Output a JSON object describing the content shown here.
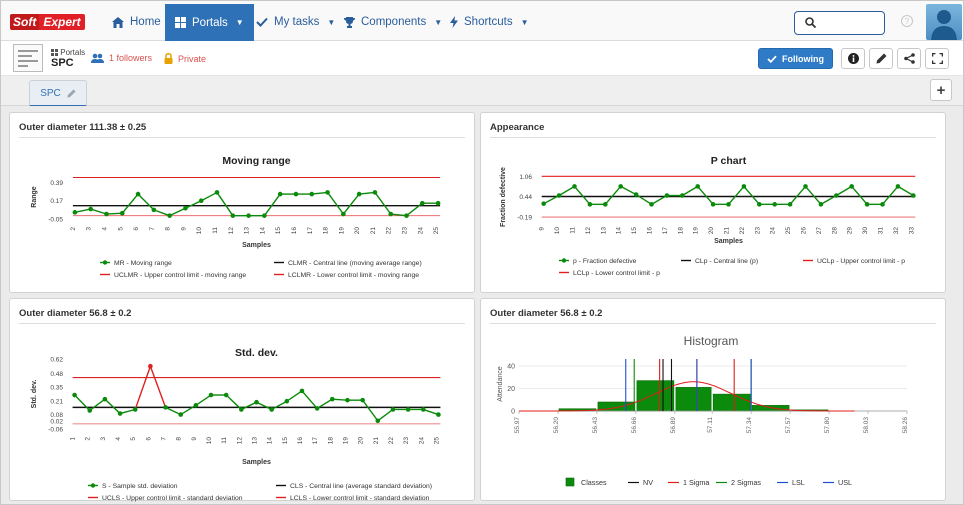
{
  "brand": {
    "part1": "Soft",
    "part2": "Expert"
  },
  "nav": {
    "home": "Home",
    "portals": "Portals",
    "my_tasks": "My tasks",
    "components": "Components",
    "shortcuts": "Shortcuts"
  },
  "colors": {
    "primary": "#2f71b6",
    "series": "#0a8a0a",
    "control_limit": "#e02020",
    "center_line": "#111111"
  },
  "portal": {
    "type": "Portals",
    "name": "SPC",
    "followers": "1 followers",
    "privacy": "Private",
    "follow_button": "Following"
  },
  "tabs": [
    {
      "label": "SPC"
    }
  ],
  "panels": {
    "p1": {
      "title": "Outer diameter 111.38 ± 0.25"
    },
    "p2": {
      "title": "Appearance"
    },
    "p3": {
      "title": "Outer diameter 56.8 ± 0.2"
    },
    "p4": {
      "title": "Outer diameter 56.8 ± 0.2"
    }
  },
  "chart_data": [
    {
      "type": "line",
      "title": "Moving range",
      "xlabel": "Samples",
      "ylabel": "Range",
      "ylim": [
        -0.05,
        0.48
      ],
      "yticks": [
        0.39,
        0.17,
        -0.05
      ],
      "x": [
        "2",
        "3",
        "4",
        "5",
        "6",
        "7",
        "8",
        "9",
        "10",
        "11",
        "12",
        "13",
        "14",
        "15",
        "16",
        "17",
        "18",
        "19",
        "20",
        "21",
        "22",
        "23",
        "24",
        "25"
      ],
      "series": [
        {
          "name": "MR - Moving range",
          "kind": "data",
          "values": [
            0.03,
            0.07,
            0.01,
            0.02,
            0.25,
            0.06,
            -0.01,
            0.08,
            0.17,
            0.27,
            -0.01,
            -0.01,
            -0.01,
            0.25,
            0.25,
            0.25,
            0.27,
            0.01,
            0.25,
            0.27,
            0.01,
            -0.01,
            0.14,
            0.14
          ]
        },
        {
          "name": "CLMR - Central line (moving average range)",
          "kind": "cl",
          "value": 0.11
        },
        {
          "name": "UCLMR - Upper control limit - moving range",
          "kind": "ucl",
          "value": 0.45
        },
        {
          "name": "LCLMR - Lower control limit - moving range",
          "kind": "lcl",
          "value": -0.01
        }
      ],
      "legend": "bottom"
    },
    {
      "type": "line",
      "title": "P chart",
      "xlabel": "Samples",
      "ylabel": "Fraction defective",
      "ylim": [
        -0.25,
        1.1
      ],
      "yticks": [
        1.06,
        0.44,
        -0.19
      ],
      "x": [
        "9",
        "10",
        "11",
        "12",
        "13",
        "14",
        "15",
        "16",
        "17",
        "18",
        "19",
        "20",
        "21",
        "22",
        "23",
        "24",
        "25",
        "26",
        "27",
        "28",
        "29",
        "30",
        "31",
        "32",
        "33"
      ],
      "series": [
        {
          "name": "p - Fraction defective",
          "kind": "data",
          "values": [
            0.22,
            0.47,
            0.75,
            0.2,
            0.2,
            0.75,
            0.5,
            0.2,
            0.47,
            0.47,
            0.75,
            0.2,
            0.2,
            0.75,
            0.2,
            0.2,
            0.2,
            0.75,
            0.2,
            0.47,
            0.75,
            0.2,
            0.2,
            0.75,
            0.47
          ]
        },
        {
          "name": "CLp - Central line (p)",
          "kind": "cl",
          "value": 0.44
        },
        {
          "name": "UCLp - Upper control limit - p",
          "kind": "ucl",
          "value": 1.06
        },
        {
          "name": "LCLp - Lower control limit - p",
          "kind": "lcl",
          "value": -0.19
        }
      ],
      "legend": "bottom"
    },
    {
      "type": "line",
      "title": "Std. dev.",
      "xlabel": "Samples",
      "ylabel": "Std. dev.",
      "ylim": [
        -0.06,
        0.62
      ],
      "yticks": [
        0.62,
        0.48,
        0.35,
        0.21,
        0.08,
        0.02,
        -0.06
      ],
      "x": [
        "1",
        "2",
        "3",
        "4",
        "5",
        "6",
        "7",
        "8",
        "9",
        "10",
        "11",
        "12",
        "13",
        "14",
        "15",
        "16",
        "17",
        "18",
        "19",
        "20",
        "21",
        "22",
        "23",
        "24",
        "25"
      ],
      "series": [
        {
          "name": "S - Sample std. deviation",
          "kind": "data",
          "values": [
            0.27,
            0.12,
            0.23,
            0.09,
            0.13,
            0.55,
            0.15,
            0.08,
            0.17,
            0.27,
            0.27,
            0.13,
            0.2,
            0.13,
            0.21,
            0.31,
            0.14,
            0.23,
            0.22,
            0.22,
            0.02,
            0.13,
            0.13,
            0.13,
            0.08
          ]
        },
        {
          "name": "CLS - Central line (average standard deviation)",
          "kind": "cl",
          "value": 0.15
        },
        {
          "name": "UCLS - Upper control limit - standard deviation",
          "kind": "ucl",
          "value": 0.44
        },
        {
          "name": "LCLS - Lower control limit - standard deviation",
          "kind": "lcl",
          "value": -0.01
        }
      ],
      "legend": "bottom"
    },
    {
      "type": "bar",
      "title": "Histogram",
      "xlabel": "",
      "ylabel": "Attendance",
      "ylim": [
        0,
        48
      ],
      "yticks": [
        40,
        20,
        0
      ],
      "x_ticks": [
        "55.97",
        "56.20",
        "56.43",
        "56.66",
        "56.89",
        "57.11",
        "57.34",
        "57.57",
        "57.80",
        "58.03",
        "58.26"
      ],
      "bins": [
        {
          "from": 56.2,
          "to": 56.43,
          "value": 2
        },
        {
          "from": 56.43,
          "to": 56.66,
          "value": 8
        },
        {
          "from": 56.66,
          "to": 56.89,
          "value": 27
        },
        {
          "from": 56.89,
          "to": 57.11,
          "value": 21
        },
        {
          "from": 57.11,
          "to": 57.34,
          "value": 15
        },
        {
          "from": 57.34,
          "to": 57.57,
          "value": 5
        },
        {
          "from": 57.57,
          "to": 57.8,
          "value": 1
        }
      ],
      "lines": {
        "nv": [
          56.82,
          56.87
        ],
        "sigma1": [
          56.8,
          57.02,
          57.24
        ],
        "sigma2": [
          56.65,
          57.34
        ],
        "lsl": [
          56.6,
          57.02
        ],
        "usl": [
          57.34
        ]
      },
      "curve": "normal",
      "legend": [
        "Classes",
        "NV",
        "1 Sigma",
        "2 Sigmas",
        "LSL",
        "USL"
      ]
    }
  ]
}
